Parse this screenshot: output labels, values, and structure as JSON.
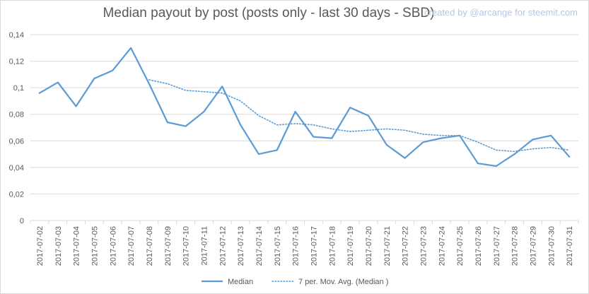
{
  "credit": "created by @arcange for steemit.com",
  "chart_data": {
    "type": "line",
    "title": "Median payout by post (posts only - last 30 days - SBD)",
    "xlabel": "",
    "ylabel": "",
    "ylim": [
      0,
      0.14
    ],
    "yticks": [
      "0",
      "0,02",
      "0,04",
      "0,06",
      "0,08",
      "0,1",
      "0,12",
      "0,14"
    ],
    "grid": true,
    "legend_position": "bottom",
    "x": [
      "2017-07-02",
      "2017-07-03",
      "2017-07-04",
      "2017-07-05",
      "2017-07-06",
      "2017-07-07",
      "2017-07-08",
      "2017-07-09",
      "2017-07-10",
      "2017-07-11",
      "2017-07-12",
      "2017-07-13",
      "2017-07-14",
      "2017-07-15",
      "2017-07-16",
      "2017-07-17",
      "2017-07-18",
      "2017-07-19",
      "2017-07-20",
      "2017-07-21",
      "2017-07-22",
      "2017-07-23",
      "2017-07-24",
      "2017-07-25",
      "2017-07-26",
      "2017-07-27",
      "2017-07-28",
      "2017-07-29",
      "2017-07-30",
      "2017-07-31"
    ],
    "series": [
      {
        "name": "Median",
        "style": "solid",
        "color": "#5b9bd5",
        "values": [
          0.096,
          0.104,
          0.086,
          0.107,
          0.113,
          0.13,
          0.103,
          0.074,
          0.071,
          0.082,
          0.101,
          0.072,
          0.05,
          0.053,
          0.082,
          0.063,
          0.062,
          0.085,
          0.079,
          0.057,
          0.047,
          0.059,
          0.062,
          0.064,
          0.043,
          0.041,
          0.05,
          0.061,
          0.064,
          0.048
        ]
      },
      {
        "name": "7 per. Mov. Avg. (Median )",
        "style": "dotted",
        "color": "#5b9bd5",
        "values": [
          null,
          null,
          null,
          null,
          null,
          null,
          0.106,
          0.103,
          0.098,
          0.097,
          0.096,
          0.09,
          0.079,
          0.072,
          0.073,
          0.072,
          0.069,
          0.067,
          0.068,
          0.069,
          0.068,
          0.065,
          0.064,
          0.064,
          0.059,
          0.053,
          0.052,
          0.054,
          0.055,
          0.053
        ]
      }
    ]
  }
}
